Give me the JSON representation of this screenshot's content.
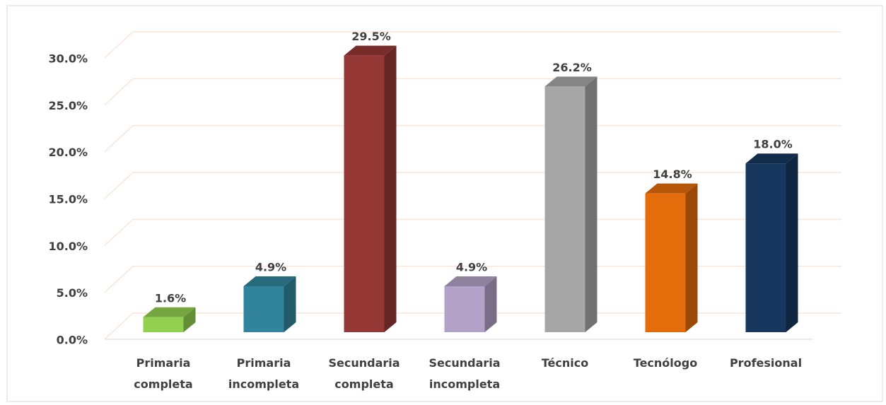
{
  "chart_data": {
    "type": "bar3d",
    "categories": [
      "Primaria completa",
      "Primaria incompleta",
      "Secundaria completa",
      "Secundaria incompleta",
      "Técnico",
      "Tecnólogo",
      "Profesional"
    ],
    "values": [
      1.6,
      4.9,
      29.5,
      4.9,
      26.2,
      14.8,
      18.0
    ],
    "value_labels": [
      "1.6%",
      "4.9%",
      "29.5%",
      "4.9%",
      "26.2%",
      "14.8%",
      "18.0%"
    ],
    "colors": [
      "#92d050",
      "#31849b",
      "#953735",
      "#b3a2c7",
      "#a6a6a6",
      "#e46c0a",
      "#17375e"
    ],
    "ylim": [
      0,
      30
    ],
    "yticks": [
      {
        "value": 0,
        "label": "0.0%"
      },
      {
        "value": 5,
        "label": "5.0%"
      },
      {
        "value": 10,
        "label": "10.0%"
      },
      {
        "value": 15,
        "label": "15.0%"
      },
      {
        "value": 20,
        "label": "20.0%"
      },
      {
        "value": 25,
        "label": "25.0%"
      },
      {
        "value": 30,
        "label": "30.0%"
      }
    ],
    "grid": true
  }
}
